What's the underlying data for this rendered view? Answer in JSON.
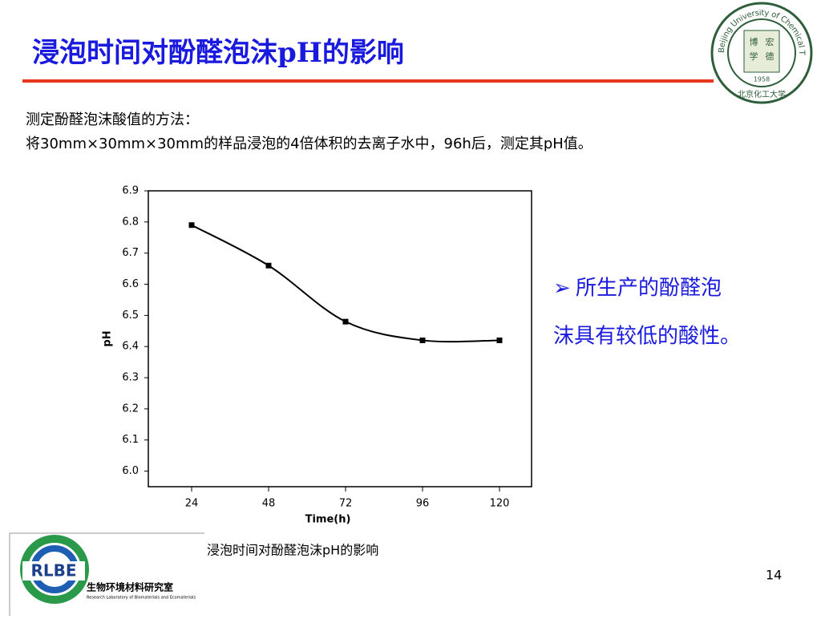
{
  "slide": {
    "title": "浸泡时间对酚醛泡沫pH的影响",
    "method_lines": [
      "测定酚醛泡沫酸值的方法：",
      "将30mm×30mm×30mm的样品浸泡的4倍体积的去离子水中，96h后，测定其pH值。"
    ],
    "bullet": [
      "所生产的酚醛泡",
      "沫具有较低的酸性。"
    ],
    "caption": "浸泡时间对酚醛泡沫pH的影响",
    "page_number": "14",
    "university_logo": {
      "ring_text": "Beijing University of Chemical Technology",
      "center": [
        "博",
        "宏",
        "学",
        "德"
      ],
      "year": "1958",
      "bottom": "北京化工大学"
    },
    "lab_logo": {
      "abbr": "RLBE",
      "name_cn": "生物环境材料研究室",
      "name_en": "Research Laboratory of Biomaterials and Ecomaterials"
    }
  },
  "chart_data": {
    "type": "scatter",
    "x_label": "Time(h)",
    "y_label": "pH",
    "x": [
      24,
      48,
      72,
      96,
      120
    ],
    "values": [
      6.79,
      6.66,
      6.48,
      6.42,
      6.42
    ],
    "color": "#000000",
    "fit_curve": true,
    "xlim": [
      10.5,
      130
    ],
    "xticks": [
      24,
      48,
      72,
      96,
      120
    ],
    "ylim": [
      5.95,
      6.9
    ],
    "yticks": [
      {
        "value": 6.0,
        "label": "6.0"
      },
      6.1,
      6.2,
      6.3,
      6.4,
      6.5,
      6.6,
      6.7,
      6.8,
      6.9
    ]
  }
}
